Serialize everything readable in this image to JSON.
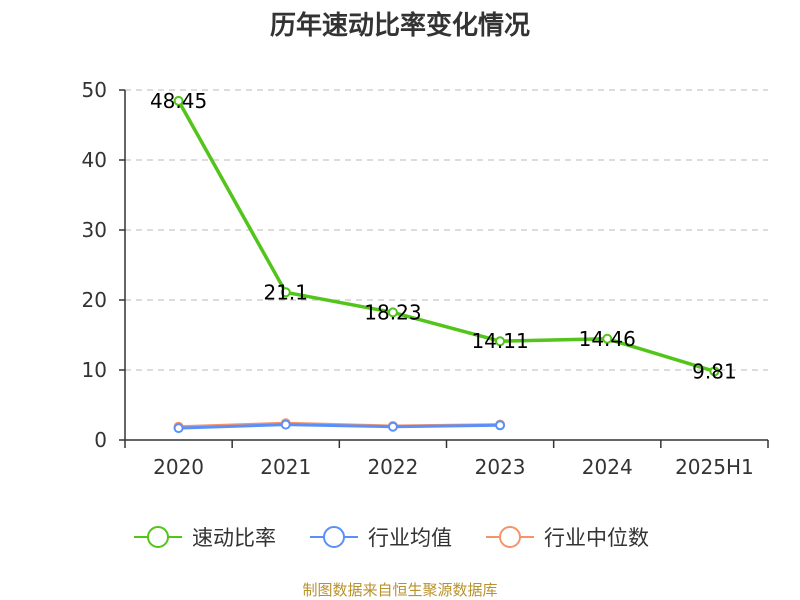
{
  "chart_data": {
    "type": "line",
    "title": "历年速动比率变化情况",
    "categories": [
      "2020",
      "2021",
      "2022",
      "2023",
      "2024",
      "2025H1"
    ],
    "ylim": [
      0,
      50
    ],
    "yticks": [
      0,
      10,
      20,
      30,
      40,
      50
    ],
    "grid": true,
    "legend_position": "bottom",
    "series": [
      {
        "name": "速动比率",
        "color": "#52c41a",
        "values": [
          48.45,
          21.1,
          18.23,
          14.11,
          14.46,
          9.81
        ],
        "labels": [
          "48.45",
          "21.1",
          "18.23",
          "14.11",
          "14.46",
          "9.81"
        ]
      },
      {
        "name": "行业均值",
        "color": "#5b8ff9",
        "values": [
          1.7,
          2.2,
          1.9,
          2.1,
          null,
          null
        ]
      },
      {
        "name": "行业中位数",
        "color": "#f4946b",
        "values": [
          1.9,
          2.4,
          2.0,
          2.2,
          null,
          null
        ]
      }
    ]
  },
  "footer": {
    "source": "制图数据来自恒生聚源数据库",
    "color": "#b8922d"
  }
}
